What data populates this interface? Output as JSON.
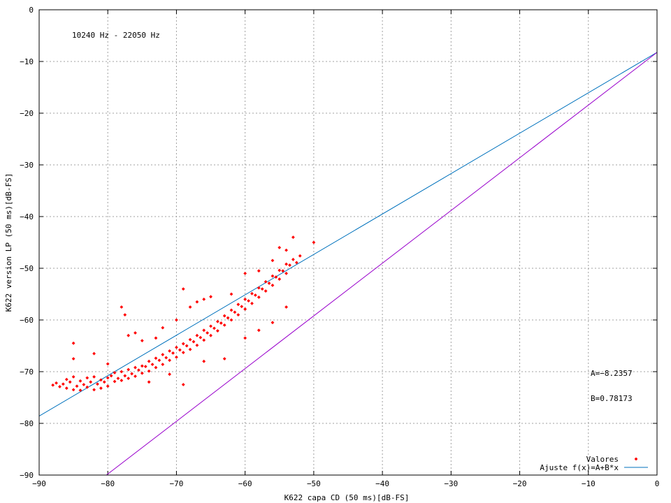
{
  "chart_data": {
    "type": "scatter",
    "annotation": "10240 Hz - 22050 Hz",
    "xlabel": "K622 capa CD (50 ms)[dB-FS]",
    "ylabel": "K622 version LP (50 ms)[dB-FS]",
    "xlim": [
      -90,
      0
    ],
    "ylim": [
      -90,
      0
    ],
    "x_ticks": [
      -90,
      -80,
      -70,
      -60,
      -50,
      -40,
      -30,
      -20,
      -10,
      0
    ],
    "y_ticks": [
      -90,
      -80,
      -70,
      -60,
      -50,
      -40,
      -30,
      -20,
      -10,
      0
    ],
    "x_tick_labels": [
      "−90",
      "−80",
      "−70",
      "−60",
      "−50",
      "−40",
      "−30",
      "−20",
      "−10",
      "0"
    ],
    "y_tick_labels": [
      "−90",
      "−80",
      "−70",
      "−60",
      "−50",
      "−40",
      "−30",
      "−20",
      "−10",
      "0"
    ],
    "grid": true,
    "legend_position": "bottom-right",
    "fit_params": {
      "A_label": "A=−8.2357",
      "B_label": "B=0.78173",
      "A": -8.2357,
      "B": 0.78173
    },
    "series": [
      {
        "name": "Valores",
        "kind": "points",
        "color": "#ff0000",
        "points": [
          [
            -88,
            -72.6
          ],
          [
            -87.5,
            -72.2
          ],
          [
            -87,
            -72.9
          ],
          [
            -86.5,
            -72.4
          ],
          [
            -86,
            -71.5
          ],
          [
            -86,
            -73.2
          ],
          [
            -85.5,
            -72.0
          ],
          [
            -85,
            -73.5
          ],
          [
            -85,
            -71.0
          ],
          [
            -84.5,
            -72.8
          ],
          [
            -84,
            -71.8
          ],
          [
            -84,
            -73.6
          ],
          [
            -83.5,
            -72.5
          ],
          [
            -83,
            -71.2
          ],
          [
            -83,
            -73.0
          ],
          [
            -82.5,
            -72.0
          ],
          [
            -82,
            -73.5
          ],
          [
            -82,
            -71.0
          ],
          [
            -81.5,
            -72.4
          ],
          [
            -81,
            -71.6
          ],
          [
            -81,
            -73.2
          ],
          [
            -80.5,
            -72.0
          ],
          [
            -80,
            -71.2
          ],
          [
            -80,
            -72.8
          ],
          [
            -79.5,
            -70.8
          ],
          [
            -79,
            -71.9
          ],
          [
            -79,
            -70.2
          ],
          [
            -78.5,
            -71.3
          ],
          [
            -78,
            -70.0
          ],
          [
            -78,
            -71.7
          ],
          [
            -77.5,
            -70.8
          ],
          [
            -77,
            -69.6
          ],
          [
            -77,
            -71.3
          ],
          [
            -76.5,
            -70.4
          ],
          [
            -76,
            -69.2
          ],
          [
            -76,
            -70.9
          ],
          [
            -75.5,
            -69.7
          ],
          [
            -75,
            -68.9
          ],
          [
            -75,
            -70.3
          ],
          [
            -74.5,
            -69.0
          ],
          [
            -74,
            -68.0
          ],
          [
            -74,
            -69.9
          ],
          [
            -73.5,
            -68.6
          ],
          [
            -73,
            -67.4
          ],
          [
            -73,
            -69.2
          ],
          [
            -72.5,
            -67.8
          ],
          [
            -72,
            -66.7
          ],
          [
            -72,
            -68.6
          ],
          [
            -71.5,
            -67.3
          ],
          [
            -71,
            -66.0
          ],
          [
            -71,
            -67.8
          ],
          [
            -70.5,
            -66.4
          ],
          [
            -70,
            -65.3
          ],
          [
            -70,
            -67.2
          ],
          [
            -69.5,
            -65.8
          ],
          [
            -69,
            -64.6
          ],
          [
            -69,
            -66.3
          ],
          [
            -68.5,
            -65.0
          ],
          [
            -68,
            -63.8
          ],
          [
            -68,
            -65.7
          ],
          [
            -67.5,
            -64.2
          ],
          [
            -67,
            -63.0
          ],
          [
            -67,
            -64.9
          ],
          [
            -66.5,
            -63.4
          ],
          [
            -66,
            -62.0
          ],
          [
            -66,
            -63.9
          ],
          [
            -65.5,
            -62.5
          ],
          [
            -65,
            -61.2
          ],
          [
            -65,
            -63.0
          ],
          [
            -64.5,
            -61.6
          ],
          [
            -64,
            -60.3
          ],
          [
            -64,
            -62.1
          ],
          [
            -63.5,
            -60.6
          ],
          [
            -63,
            -59.2
          ],
          [
            -63,
            -61.0
          ],
          [
            -62.5,
            -59.6
          ],
          [
            -62,
            -58.1
          ],
          [
            -62,
            -60.0
          ],
          [
            -61.5,
            -58.5
          ],
          [
            -61,
            -57.0
          ],
          [
            -61,
            -59.0
          ],
          [
            -60.5,
            -57.4
          ],
          [
            -60,
            -56.0
          ],
          [
            -60,
            -57.9
          ],
          [
            -59.5,
            -56.3
          ],
          [
            -59,
            -54.9
          ],
          [
            -59,
            -56.8
          ],
          [
            -58.5,
            -55.2
          ],
          [
            -58,
            -53.8
          ],
          [
            -58,
            -55.6
          ],
          [
            -57.5,
            -54.0
          ],
          [
            -57,
            -52.6
          ],
          [
            -57,
            -54.4
          ],
          [
            -56.5,
            -52.9
          ],
          [
            -56,
            -51.5
          ],
          [
            -56,
            -53.3
          ],
          [
            -55.5,
            -51.7
          ],
          [
            -55,
            -50.4
          ],
          [
            -55,
            -52.1
          ],
          [
            -54.5,
            -50.5
          ],
          [
            -54,
            -49.2
          ],
          [
            -54,
            -51.0
          ],
          [
            -53.5,
            -49.4
          ],
          [
            -53,
            -48.3
          ],
          [
            -52.5,
            -48.9
          ],
          [
            -52,
            -47.6
          ],
          [
            -85,
            -64.5
          ],
          [
            -85,
            -67.5
          ],
          [
            -82,
            -66.5
          ],
          [
            -80,
            -68.5
          ],
          [
            -78,
            -57.5
          ],
          [
            -77.5,
            -59.0
          ],
          [
            -77,
            -63.0
          ],
          [
            -76,
            -62.5
          ],
          [
            -75,
            -64.0
          ],
          [
            -73,
            -63.5
          ],
          [
            -72,
            -61.5
          ],
          [
            -70,
            -60.0
          ],
          [
            -69,
            -54.0
          ],
          [
            -68,
            -57.5
          ],
          [
            -67,
            -56.5
          ],
          [
            -66,
            -56.0
          ],
          [
            -65,
            -55.5
          ],
          [
            -62,
            -55.0
          ],
          [
            -60,
            -51.0
          ],
          [
            -58,
            -50.5
          ],
          [
            -56,
            -48.5
          ],
          [
            -55,
            -46.0
          ],
          [
            -54,
            -46.5
          ],
          [
            -53,
            -44.0
          ],
          [
            -50,
            -45.0
          ],
          [
            -69,
            -72.5
          ],
          [
            -71,
            -70.5
          ],
          [
            -74,
            -72.0
          ],
          [
            -66,
            -68.0
          ],
          [
            -63,
            -67.5
          ],
          [
            -60,
            -63.5
          ],
          [
            -58,
            -62.0
          ],
          [
            -56,
            -60.5
          ],
          [
            -54,
            -57.5
          ]
        ]
      },
      {
        "name": "Ajuste f(x)=A+B*x",
        "kind": "line",
        "color": "#0072bd",
        "x": [
          -90,
          0
        ],
        "y": [
          -78.59,
          -8.24
        ]
      },
      {
        "name": "",
        "kind": "line",
        "color": "#9900cc",
        "x": [
          -80.2,
          0
        ],
        "y": [
          -90,
          -8.24
        ]
      }
    ]
  }
}
